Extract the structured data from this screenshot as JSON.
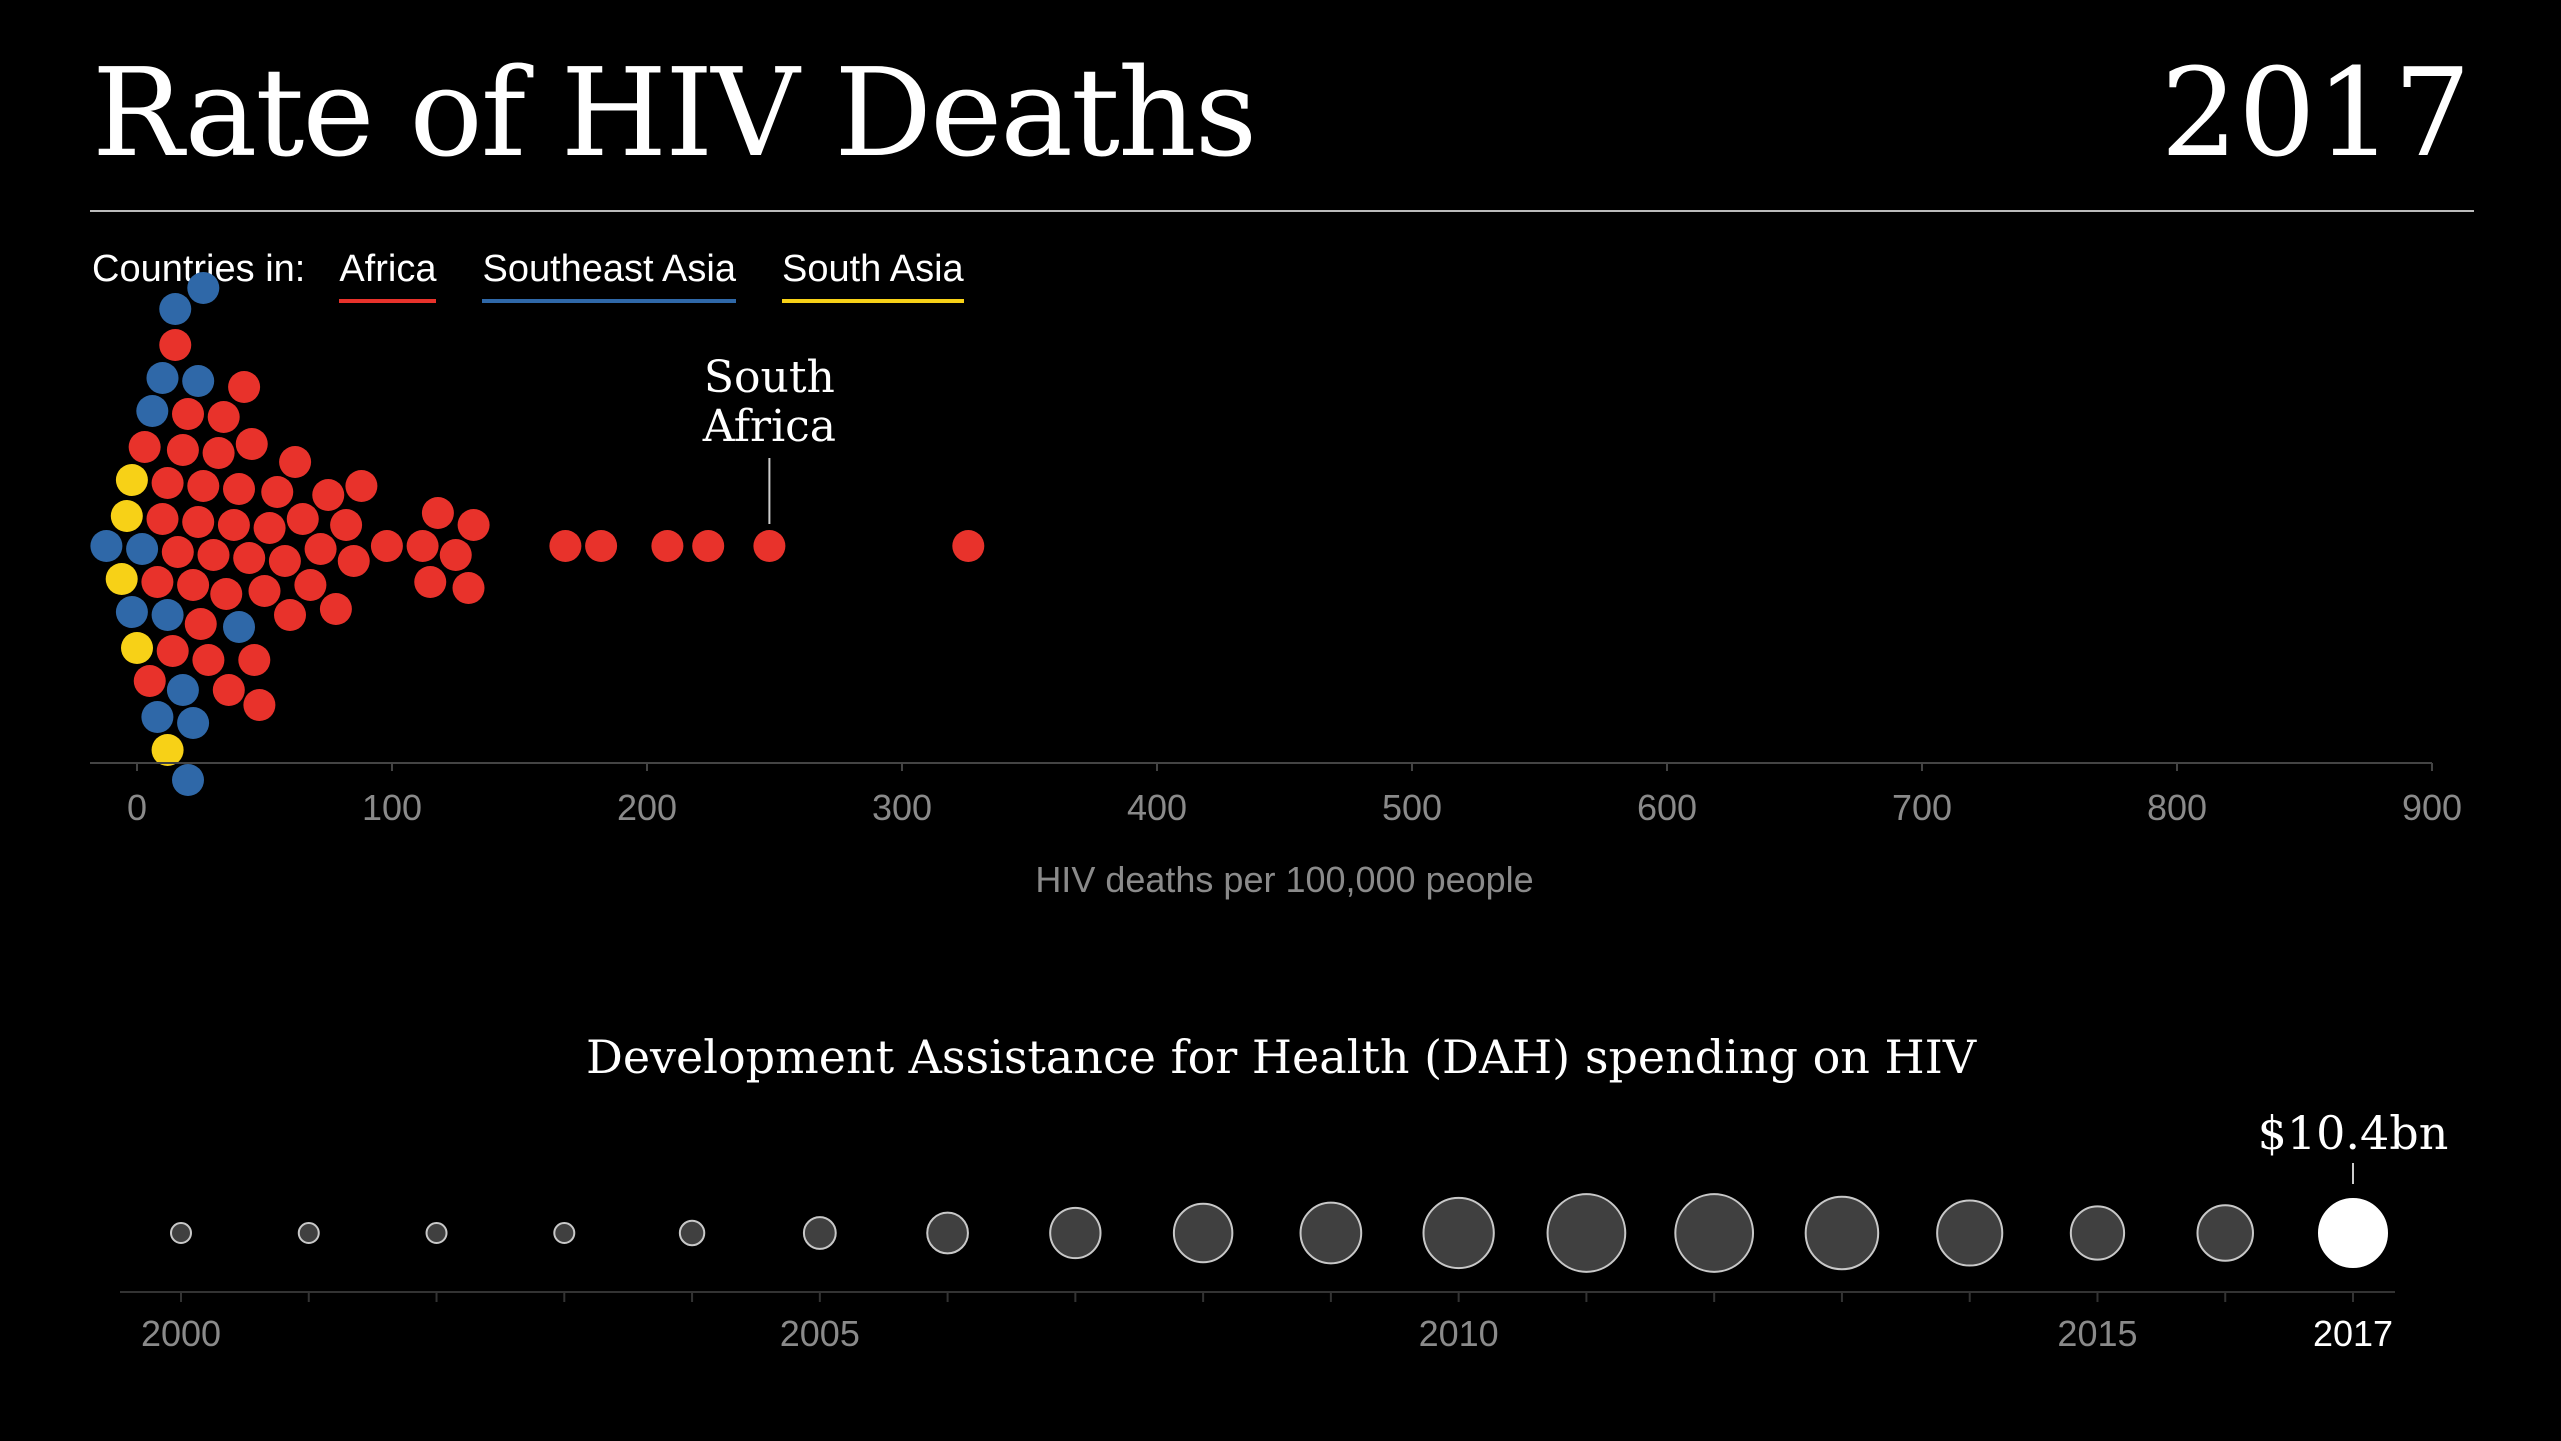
{
  "header": {
    "title": "Rate of HIV Deaths",
    "year": "2017"
  },
  "legend": {
    "lead": "Countries in:",
    "items": [
      {
        "label": "Africa",
        "color": "#e8322b"
      },
      {
        "label": "Southeast Asia",
        "color": "#2f68a8"
      },
      {
        "label": "South Asia",
        "color": "#f7d117"
      }
    ]
  },
  "chart_data": [
    {
      "type": "scatter",
      "subtype": "beeswarm",
      "xlabel": "HIV deaths per 100,000 people",
      "xlim": [
        0,
        900
      ],
      "ticks": [
        "0",
        "100",
        "200",
        "300",
        "400",
        "500",
        "600",
        "700",
        "800",
        "900"
      ],
      "tick_values": [
        0,
        100,
        200,
        300,
        400,
        500,
        600,
        700,
        800,
        900
      ],
      "annotation": {
        "label_line1": "South",
        "label_line2": "Africa",
        "value": 248
      },
      "series": [
        {
          "name": "Africa",
          "color": "#e8322b",
          "values": [
            3,
            5,
            8,
            10,
            12,
            14,
            15,
            16,
            18,
            20,
            22,
            24,
            25,
            26,
            28,
            30,
            32,
            34,
            35,
            36,
            38,
            40,
            42,
            44,
            45,
            46,
            48,
            50,
            52,
            55,
            58,
            60,
            62,
            65,
            68,
            72,
            75,
            78,
            82,
            85,
            88,
            98,
            112,
            115,
            118,
            125,
            130,
            132,
            168,
            182,
            208,
            224,
            248,
            326
          ]
        },
        {
          "name": "Southeast Asia",
          "color": "#2f68a8",
          "values": [
            -12,
            -2,
            2,
            6,
            8,
            10,
            12,
            15,
            18,
            20,
            22,
            24,
            26,
            40
          ]
        },
        {
          "name": "South Asia",
          "color": "#f7d117",
          "values": [
            -6,
            -4,
            -2,
            0,
            12
          ]
        }
      ]
    },
    {
      "type": "scatter",
      "subtype": "bubble-timeline",
      "title": "Development Assistance for Health (DAH) spending on HIV",
      "x": [
        2000,
        2001,
        2002,
        2003,
        2004,
        2005,
        2006,
        2007,
        2008,
        2009,
        2010,
        2011,
        2012,
        2013,
        2014,
        2015,
        2016,
        2017
      ],
      "relative_size": [
        0.12,
        0.14,
        0.19,
        0.24,
        0.33,
        0.43,
        0.55,
        0.68,
        0.79,
        0.82,
        0.95,
        1.05,
        1.05,
        0.98,
        0.88,
        0.72,
        0.75,
        0.76
      ],
      "xtick_labels": [
        "2000",
        "2005",
        "2010",
        "2015",
        "2017"
      ],
      "xtick_values": [
        2000,
        2005,
        2010,
        2015,
        2017
      ],
      "highlight": {
        "year": 2017,
        "label": "$10.4bn"
      }
    }
  ]
}
